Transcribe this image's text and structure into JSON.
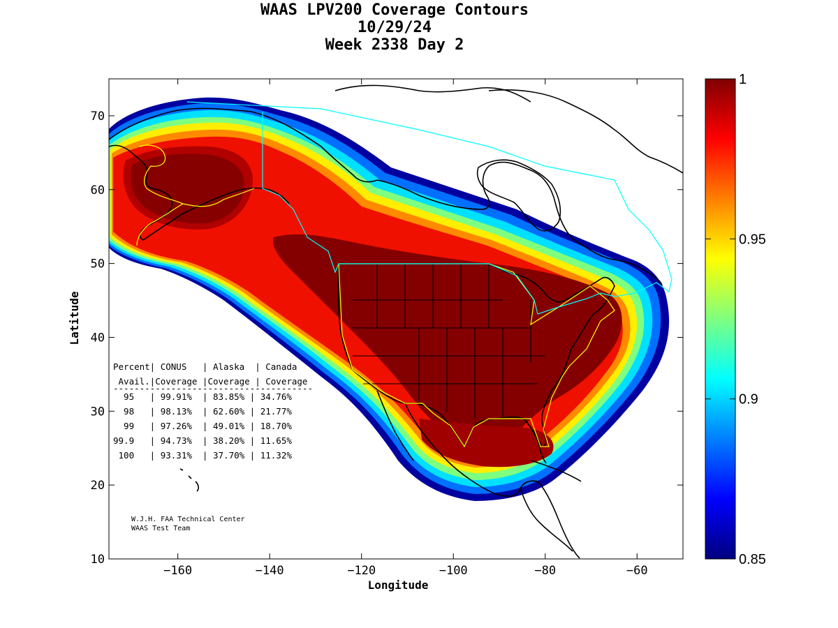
{
  "title": {
    "line1": "WAAS LPV200 Coverage Contours",
    "line2": "10/29/24",
    "line3": "Week 2338 Day 2"
  },
  "axes": {
    "xlabel": "Longitude",
    "ylabel": "Latitude",
    "xlim": [
      -175,
      -50
    ],
    "ylim": [
      10,
      75
    ],
    "xticks": [
      -160,
      -140,
      -120,
      -100,
      -80,
      -60
    ],
    "yticks": [
      10,
      20,
      30,
      40,
      50,
      60,
      70
    ]
  },
  "colorbar": {
    "min": 0.85,
    "max": 1,
    "ticks": [
      "1",
      "0.95",
      "0.9",
      "0.85"
    ],
    "colors": [
      "#00007f",
      "#0000ff",
      "#007fff",
      "#00ffff",
      "#7fff7f",
      "#ffff00",
      "#ff7f00",
      "#ff0000",
      "#7f0000"
    ]
  },
  "stats": {
    "header1": "Percent| CONUS   | Alaska  | Canada",
    "header2": " Avail.|Coverage |Coverage | Coverage",
    "divider": "--------------------------------------",
    "rows": [
      "  95   | 99.91%  | 83.85% | 34.76%",
      "  98   | 98.13%  | 62.60% | 21.77%",
      "  99   | 97.26%  | 49.01% | 18.70%",
      "99.9   | 94.73%  | 38.20% | 11.65%",
      " 100   | 93.31%  | 37.70% | 11.32%"
    ]
  },
  "credit": {
    "line1": "W.J.H. FAA Technical Center",
    "line2": "WAAS Test Team"
  },
  "chart_data": {
    "type": "heatmap",
    "title": "WAAS LPV200 Coverage Contours",
    "xlabel": "Longitude",
    "ylabel": "Latitude",
    "xlim": [
      -175,
      -50
    ],
    "ylim": [
      10,
      75
    ],
    "value_range": [
      0.85,
      1
    ],
    "regions": [
      "CONUS",
      "Alaska",
      "Canada"
    ],
    "coverage_table": {
      "percent_avail": [
        "95",
        "98",
        "99",
        "99.9",
        "100"
      ],
      "CONUS": [
        "99.91%",
        "98.13%",
        "97.26%",
        "94.73%",
        "93.31%"
      ],
      "Alaska": [
        "83.85%",
        "62.60%",
        "49.01%",
        "38.20%",
        "37.70%"
      ],
      "Canada": [
        "34.76%",
        "21.77%",
        "18.70%",
        "11.65%",
        "11.32%"
      ]
    }
  }
}
